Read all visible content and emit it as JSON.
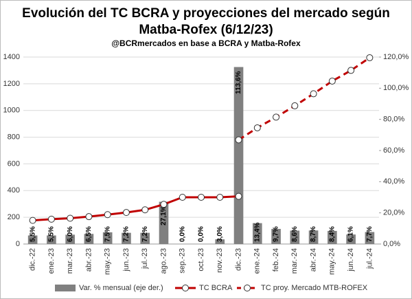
{
  "chart_data": {
    "type": "bar_line",
    "title": [
      "Evolución del TC BCRA y proyecciones del mercado según",
      "Matba-Rofex (6/12/23)"
    ],
    "subtitle": "@BCRmercados en base a BCRA y Matba-Rofex",
    "categories": [
      "dic.-22",
      "ene.-23",
      "mar.-23",
      "abr.-23",
      "may.-23",
      "jun.-23",
      "jul.-23",
      "ago.-23",
      "sep.-23",
      "oct.-23",
      "nov.-23",
      "dic.-23",
      "ene.-24",
      "feb.-24",
      "mar.-24",
      "abr.-24",
      "may.-24",
      "jun.-24",
      "jul.-24"
    ],
    "series": [
      {
        "name": "Var. % mensual (eje der.)",
        "type": "bar",
        "axis": "y2",
        "color": "#808080",
        "values": [
          5.5,
          5.5,
          6.0,
          6.5,
          7.5,
          7.2,
          7.2,
          27.1,
          0.0,
          0.0,
          3.0,
          113.6,
          13.4,
          9.7,
          8.6,
          8.7,
          8.4,
          6.1,
          7.7
        ],
        "value_labels": [
          "5,5%",
          "5,5%",
          "6,0%",
          "6,5%",
          "7,5%",
          "7,2%",
          "7,2%",
          "27,1%",
          "0,0%",
          "0,0%",
          "3,0%",
          "113,6%",
          "13,4%",
          "9,7%",
          "8,6%",
          "8,7%",
          "8,4%",
          "6,1%",
          "7,7%"
        ]
      },
      {
        "name": "TC BCRA",
        "type": "line",
        "color": "#c00000",
        "dashed": false,
        "values": [
          177,
          186,
          193,
          205,
          220,
          236,
          256,
          297,
          350,
          350,
          350,
          357,
          null,
          null,
          null,
          null,
          null,
          null,
          null
        ]
      },
      {
        "name": "TC proy. Mercado MTB-ROFEX",
        "type": "line",
        "color": "#c00000",
        "dashed": true,
        "values": [
          null,
          null,
          null,
          null,
          null,
          null,
          null,
          null,
          null,
          null,
          null,
          780,
          870,
          950,
          1035,
          1125,
          1220,
          1300,
          1395
        ]
      }
    ],
    "ylim": [
      0,
      1400
    ],
    "yticks": [
      0,
      200,
      400,
      600,
      800,
      1000,
      1200,
      1400
    ],
    "y2lim": [
      0,
      120
    ],
    "y2ticks": [
      {
        "value": 0,
        "label": "0,0%"
      },
      {
        "value": 20,
        "label": "20,0%"
      },
      {
        "value": 40,
        "label": "40,0%"
      },
      {
        "value": 60,
        "label": "60,0%"
      },
      {
        "value": 80,
        "label": "80,0%"
      },
      {
        "value": 100,
        "label": "100,0%"
      },
      {
        "value": 120,
        "label": "120,0%"
      }
    ],
    "grid": true,
    "legend": "bottom"
  }
}
